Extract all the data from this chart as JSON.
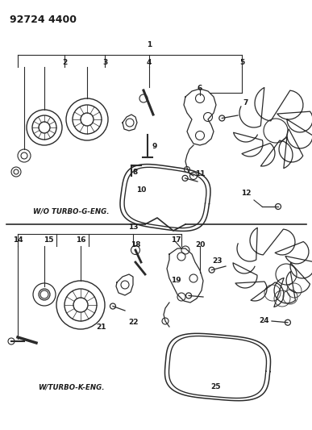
{
  "title": "92724 4400",
  "bg_color": "#ffffff",
  "line_color": "#2a2a2a",
  "text_color": "#1a1a1a",
  "label_top": "W/O TURBO-G-ENG.",
  "label_bottom": "W/TURBO-K-ENG.",
  "figsize": [
    3.87,
    5.33
  ],
  "dpi": 100
}
